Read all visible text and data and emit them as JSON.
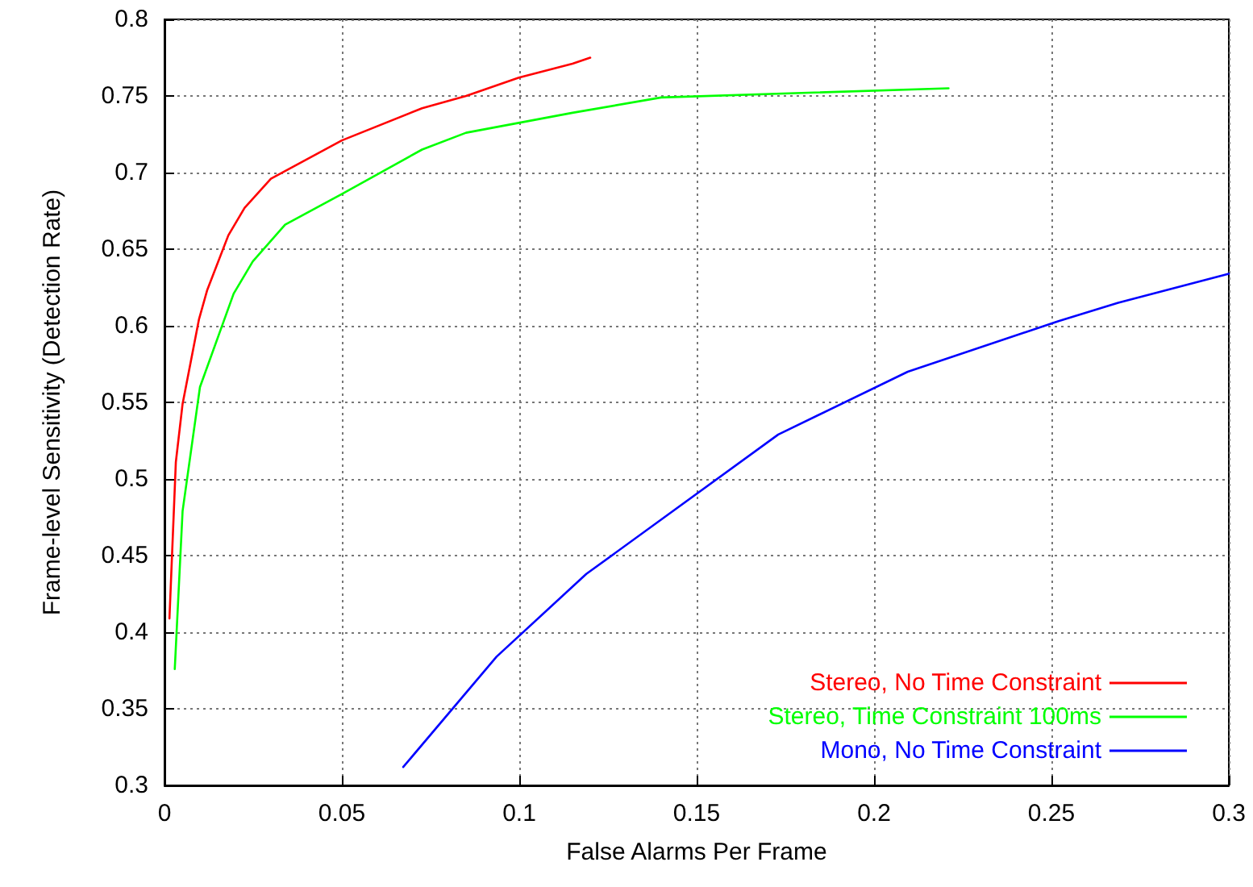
{
  "chart_data": {
    "type": "line",
    "xlabel": "False Alarms Per Frame",
    "ylabel": "Frame-level Sensitivity (Detection Rate)",
    "xlim": [
      0,
      0.3
    ],
    "xticks": [
      0,
      0.05,
      0.1,
      0.15,
      0.2,
      0.25,
      0.3
    ],
    "ylim": [
      0.3,
      0.8
    ],
    "yticks": [
      0.3,
      0.35,
      0.4,
      0.45,
      0.5,
      0.55,
      0.6,
      0.65,
      0.7,
      0.75,
      0.8
    ],
    "grid": true,
    "legend": "bottom right",
    "marker": "none",
    "line_style": "solid",
    "series": [
      {
        "name": "Stereo, No Time Constraint",
        "color": "#ff0000",
        "x": [
          0.0014,
          0.0032,
          0.0051,
          0.0097,
          0.012,
          0.018,
          0.0226,
          0.03,
          0.05,
          0.0726,
          0.085,
          0.0999,
          0.115,
          0.12
        ],
        "values": [
          0.409,
          0.511,
          0.549,
          0.604,
          0.623,
          0.659,
          0.677,
          0.696,
          0.721,
          0.742,
          0.75,
          0.762,
          0.771,
          0.775
        ]
      },
      {
        "name": "Stereo, Time Constraint 100ms",
        "color": "#00ff00",
        "x": [
          0.0029,
          0.0051,
          0.01,
          0.0195,
          0.0249,
          0.034,
          0.05,
          0.0726,
          0.085,
          0.115,
          0.14,
          0.221
        ],
        "values": [
          0.376,
          0.479,
          0.56,
          0.621,
          0.642,
          0.666,
          0.686,
          0.715,
          0.726,
          0.739,
          0.749,
          0.755
        ]
      },
      {
        "name": "Mono, No Time Constraint",
        "color": "#0000ff",
        "x": [
          0.0673,
          0.0936,
          0.1189,
          0.173,
          0.2095,
          0.252,
          0.2688,
          0.3
        ],
        "values": [
          0.312,
          0.384,
          0.438,
          0.529,
          0.57,
          0.603,
          0.615,
          0.634
        ]
      }
    ]
  }
}
